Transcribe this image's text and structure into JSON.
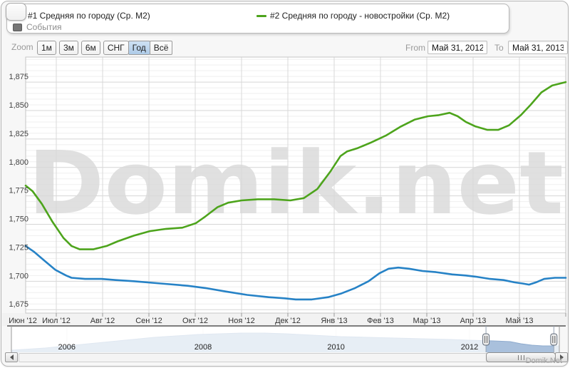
{
  "legend": {
    "items": [
      {
        "label": "#1 Средняя по городу (Ср. М2)",
        "color": "#2682c6",
        "symbol": "line"
      },
      {
        "label": "#2 Средняя по городу - новостройки (Ср. М2)",
        "color": "#4da41c",
        "symbol": "line"
      },
      {
        "label": "События",
        "color": "#757575",
        "symbol": "square"
      }
    ]
  },
  "toolbar": {
    "zoom_label": "Zoom",
    "buttons": [
      {
        "label": "1м",
        "active": false
      },
      {
        "label": "3м",
        "active": false
      },
      {
        "label": "6м",
        "active": false
      },
      {
        "label": "СНГ",
        "active": false
      },
      {
        "label": "Год",
        "active": true
      },
      {
        "label": "Всё",
        "active": false
      }
    ],
    "from_label": "From",
    "to_label": "To",
    "from_value": "Май 31, 2012",
    "to_value": "Май 31, 2013"
  },
  "credit": "Domik.Net",
  "chart_data": {
    "type": "line",
    "title": "",
    "watermark": "Domik.net",
    "x_domain": [
      "Май 31, 2012",
      "Май 31, 2013"
    ],
    "x_unit": "fraction of date range May 31 2012 → May 31 2013",
    "x_labels": [
      "Июн '12",
      "Июл '12",
      "Авг '12",
      "Сен '12",
      "Окт '12",
      "Ноя '12",
      "Дек '12",
      "Янв '13",
      "Фев '13",
      "Мар '13",
      "Апр '13",
      "Май '13"
    ],
    "ylim": [
      1672,
      1897
    ],
    "y_minor_step": 5,
    "grid": true,
    "y_ticks": [
      {
        "v": 1675,
        "label": "1,675"
      },
      {
        "v": 1700,
        "label": "1,700"
      },
      {
        "v": 1725,
        "label": "1,725"
      },
      {
        "v": 1750,
        "label": "1,750"
      },
      {
        "v": 1775,
        "label": "1,775"
      },
      {
        "v": 1800,
        "label": "1,800"
      },
      {
        "v": 1825,
        "label": "1,825"
      },
      {
        "v": 1850,
        "label": "1,850"
      },
      {
        "v": 1875,
        "label": "1,875"
      }
    ],
    "series": [
      {
        "name": "#2 Средняя по городу - новостройки (Ср. М2)",
        "color": "#4da41c",
        "points": [
          [
            0.0,
            1784
          ],
          [
            0.013,
            1779
          ],
          [
            0.03,
            1768
          ],
          [
            0.05,
            1752
          ],
          [
            0.07,
            1738
          ],
          [
            0.085,
            1731
          ],
          [
            0.1,
            1728
          ],
          [
            0.125,
            1728
          ],
          [
            0.15,
            1731
          ],
          [
            0.17,
            1735
          ],
          [
            0.2,
            1740
          ],
          [
            0.23,
            1744
          ],
          [
            0.26,
            1746
          ],
          [
            0.29,
            1747
          ],
          [
            0.315,
            1751
          ],
          [
            0.333,
            1757
          ],
          [
            0.355,
            1765
          ],
          [
            0.375,
            1769
          ],
          [
            0.4,
            1771
          ],
          [
            0.43,
            1772
          ],
          [
            0.46,
            1772
          ],
          [
            0.49,
            1771
          ],
          [
            0.515,
            1773
          ],
          [
            0.54,
            1781
          ],
          [
            0.565,
            1797
          ],
          [
            0.583,
            1810
          ],
          [
            0.595,
            1814
          ],
          [
            0.615,
            1817
          ],
          [
            0.64,
            1822
          ],
          [
            0.667,
            1828
          ],
          [
            0.695,
            1836
          ],
          [
            0.72,
            1842
          ],
          [
            0.745,
            1845
          ],
          [
            0.765,
            1846
          ],
          [
            0.785,
            1848
          ],
          [
            0.8,
            1845
          ],
          [
            0.815,
            1840
          ],
          [
            0.833,
            1836
          ],
          [
            0.855,
            1833
          ],
          [
            0.875,
            1833
          ],
          [
            0.895,
            1837
          ],
          [
            0.917,
            1846
          ],
          [
            0.935,
            1855
          ],
          [
            0.955,
            1866
          ],
          [
            0.975,
            1872
          ],
          [
            1.0,
            1875
          ]
        ]
      },
      {
        "name": "#1 Средняя по городу (Ср. М2)",
        "color": "#2682c6",
        "points": [
          [
            0.0,
            1731
          ],
          [
            0.015,
            1726
          ],
          [
            0.035,
            1718
          ],
          [
            0.055,
            1710
          ],
          [
            0.075,
            1705
          ],
          [
            0.085,
            1703
          ],
          [
            0.11,
            1702
          ],
          [
            0.14,
            1702
          ],
          [
            0.167,
            1701
          ],
          [
            0.2,
            1700
          ],
          [
            0.25,
            1698
          ],
          [
            0.3,
            1696
          ],
          [
            0.333,
            1694
          ],
          [
            0.37,
            1691
          ],
          [
            0.41,
            1688
          ],
          [
            0.45,
            1686
          ],
          [
            0.48,
            1685
          ],
          [
            0.5,
            1684
          ],
          [
            0.53,
            1684
          ],
          [
            0.56,
            1686
          ],
          [
            0.583,
            1689
          ],
          [
            0.61,
            1694
          ],
          [
            0.635,
            1700
          ],
          [
            0.655,
            1707
          ],
          [
            0.672,
            1711
          ],
          [
            0.69,
            1712
          ],
          [
            0.71,
            1711
          ],
          [
            0.735,
            1709
          ],
          [
            0.76,
            1708
          ],
          [
            0.79,
            1706
          ],
          [
            0.815,
            1705
          ],
          [
            0.833,
            1704
          ],
          [
            0.86,
            1702
          ],
          [
            0.885,
            1701
          ],
          [
            0.905,
            1699
          ],
          [
            0.92,
            1698
          ],
          [
            0.932,
            1697
          ],
          [
            0.945,
            1699
          ],
          [
            0.96,
            1702
          ],
          [
            0.98,
            1703
          ],
          [
            1.0,
            1703
          ]
        ]
      }
    ],
    "navigator": {
      "type": "area",
      "area_color": "#a9c0dc",
      "edge_color": "#8fabce",
      "years": [
        {
          "label": "2006",
          "f": 0.1
        },
        {
          "label": "2008",
          "f": 0.349
        },
        {
          "label": "2010",
          "f": 0.592
        },
        {
          "label": "2012",
          "f": 0.836
        }
      ],
      "profile": [
        [
          0,
          3
        ],
        [
          0.02,
          4
        ],
        [
          0.06,
          6
        ],
        [
          0.1,
          9
        ],
        [
          0.14,
          12
        ],
        [
          0.18,
          15
        ],
        [
          0.22,
          18
        ],
        [
          0.26,
          21
        ],
        [
          0.3,
          23
        ],
        [
          0.34,
          25
        ],
        [
          0.38,
          26
        ],
        [
          0.42,
          27
        ],
        [
          0.46,
          27
        ],
        [
          0.5,
          26
        ],
        [
          0.55,
          24
        ],
        [
          0.6,
          22
        ],
        [
          0.65,
          21
        ],
        [
          0.7,
          20
        ],
        [
          0.75,
          19
        ],
        [
          0.8,
          18
        ],
        [
          0.836,
          17
        ],
        [
          0.88,
          16
        ],
        [
          0.91,
          15
        ],
        [
          0.93,
          12
        ],
        [
          0.95,
          10
        ],
        [
          0.97,
          9
        ],
        [
          1,
          9
        ]
      ],
      "selection": [
        0.866,
        0.99
      ]
    }
  }
}
